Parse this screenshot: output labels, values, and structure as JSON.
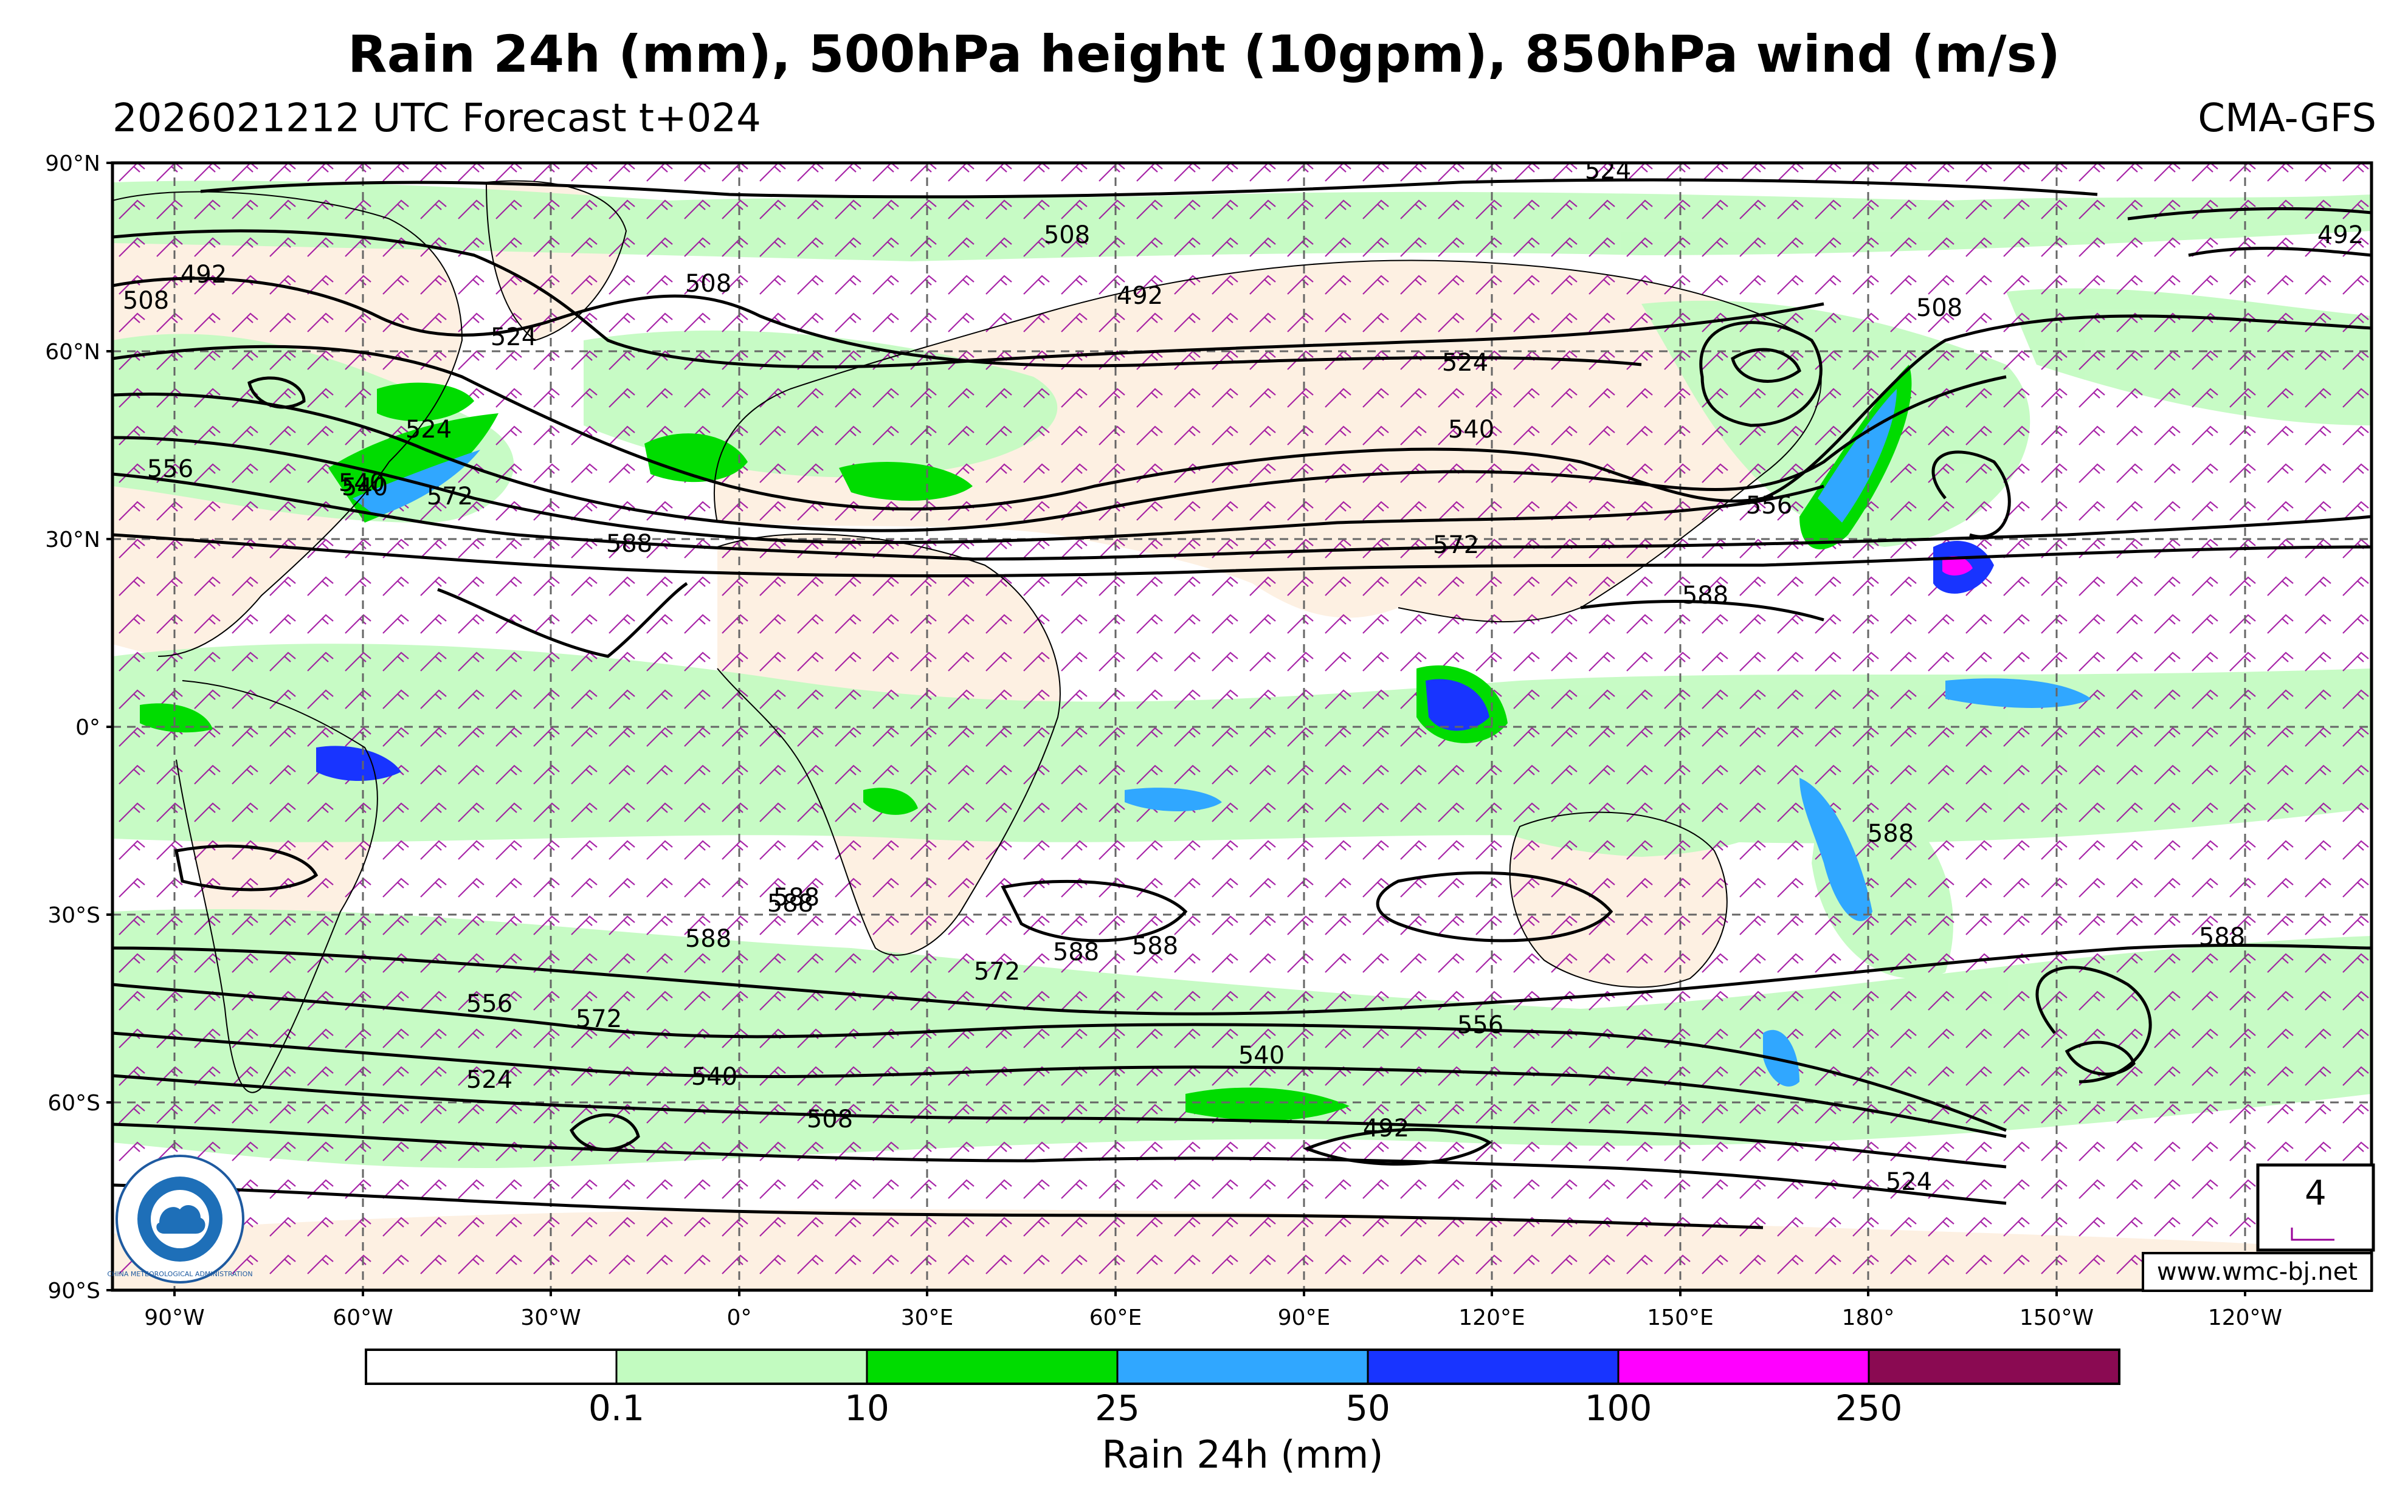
{
  "header": {
    "title": "Rain 24h (mm), 500hPa height (10gpm), 850hPa wind (m/s)",
    "subtitle_left": "2026021212 UTC Forecast t+024",
    "subtitle_right": "CMA-GFS"
  },
  "map": {
    "projection": "equirectangular",
    "grid": "dashed",
    "lat_labels": [
      "90°N",
      "60°N",
      "30°N",
      "0°",
      "30°S",
      "60°S",
      "90°S"
    ],
    "lon_labels": [
      "90°W",
      "60°W",
      "30°W",
      "0°",
      "30°E",
      "60°E",
      "90°E",
      "120°E",
      "150°E",
      "180°",
      "150°W",
      "120°W"
    ],
    "contour_labels": [
      "524",
      "508",
      "492",
      "508",
      "492",
      "508",
      "524",
      "492",
      "508",
      "524",
      "540",
      "556",
      "540",
      "572",
      "588",
      "524",
      "540",
      "572",
      "556",
      "588",
      "588",
      "588",
      "588",
      "588",
      "572",
      "588",
      "572",
      "556",
      "524",
      "540",
      "508",
      "540",
      "556",
      "492",
      "524",
      "588",
      "588"
    ],
    "colors": {
      "land": "#fdf0e2",
      "ocean": "#ffffff",
      "contour": "#000000",
      "wind_barb": "#990099"
    }
  },
  "wind_scale": {
    "value": "4"
  },
  "website": "www.wmc-bj.net",
  "colorbar": {
    "label": "Rain 24h (mm)",
    "ticks": [
      "0.1",
      "10",
      "25",
      "50",
      "100",
      "250"
    ],
    "colors": [
      "#ffffff",
      "#c2fbc0",
      "#00dc00",
      "#30a7ff",
      "#1834ff",
      "#ff00ff",
      "#8a0a52"
    ]
  },
  "logo": {
    "text": "CHINA METEOROLOGICAL ADMINISTRATION"
  }
}
